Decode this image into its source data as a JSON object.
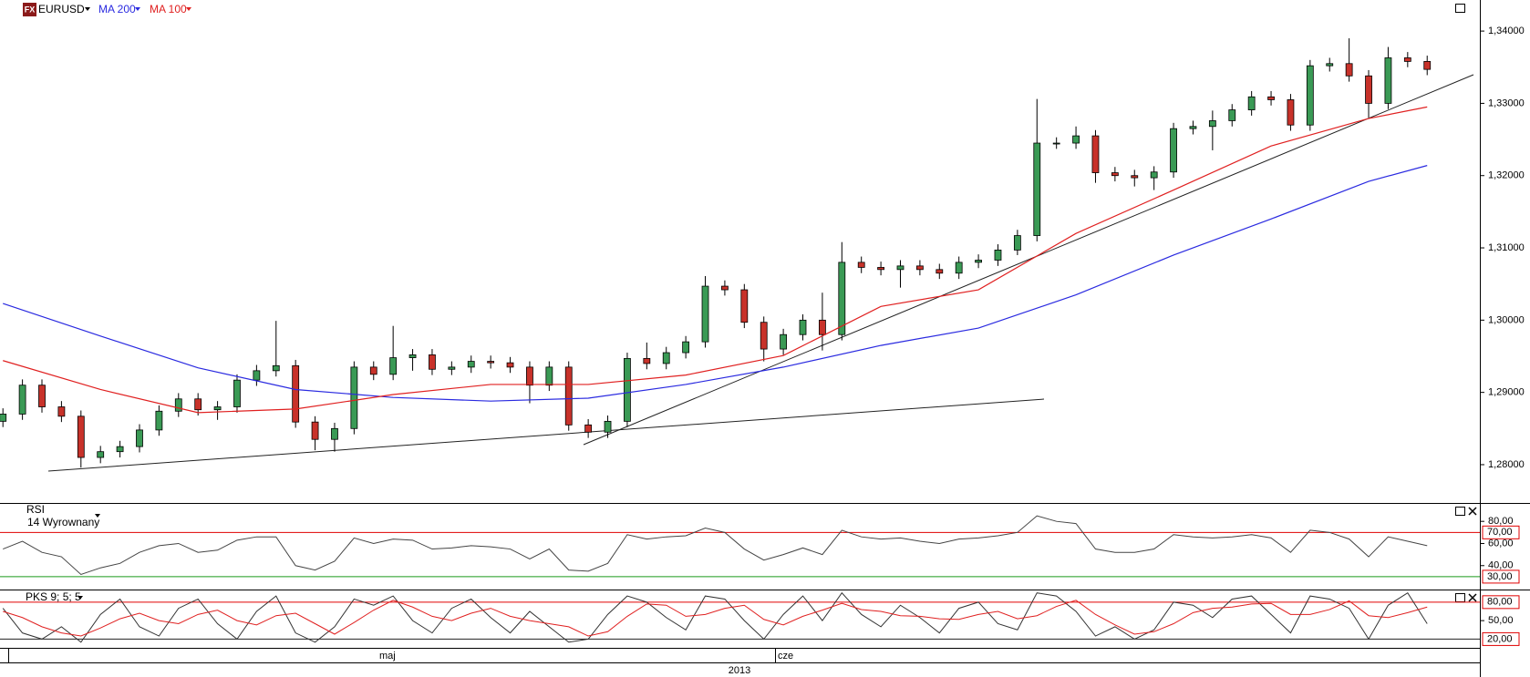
{
  "icon": "FX",
  "chart_data": [
    {
      "type": "candlestick",
      "title": "EURUSD",
      "open": [
        1.286,
        1.287,
        1.291,
        1.288,
        1.2867,
        1.281,
        1.2818,
        1.2825,
        1.2848,
        1.2874,
        1.2891,
        1.2876,
        1.288,
        1.2917,
        1.293,
        1.2937,
        1.2859,
        1.2835,
        1.285,
        1.2935,
        1.2925,
        1.2948,
        1.2952,
        1.2932,
        1.2935,
        1.2943,
        1.2941,
        1.2935,
        1.291,
        1.2935,
        1.2855,
        1.2845,
        1.286,
        1.2947,
        1.294,
        1.2955,
        1.297,
        1.3047,
        1.3042,
        1.2997,
        1.296,
        1.298,
        1.3,
        1.298,
        1.308,
        1.3073,
        1.307,
        1.3075,
        1.307,
        1.3065,
        1.308,
        1.3083,
        1.3097,
        1.3117,
        1.3245,
        1.3245,
        1.3255,
        1.3204,
        1.32,
        1.3197,
        1.3205,
        1.3265,
        1.3268,
        1.3276,
        1.3291,
        1.3309,
        1.3305,
        1.327,
        1.3352,
        1.3355,
        1.3338,
        1.33,
        1.3363,
        1.3358
      ],
      "high": [
        1.2878,
        1.2918,
        1.2918,
        1.2888,
        1.2875,
        1.2826,
        1.2833,
        1.2856,
        1.2882,
        1.2899,
        1.2899,
        1.2888,
        1.2925,
        1.2938,
        1.2999,
        1.2945,
        1.2867,
        1.2858,
        1.2943,
        1.2943,
        1.2992,
        1.296,
        1.296,
        1.2943,
        1.2951,
        1.2951,
        1.2949,
        1.2943,
        1.2943,
        1.2943,
        1.2863,
        1.2868,
        1.2955,
        1.2969,
        1.2963,
        1.2978,
        1.3061,
        1.3055,
        1.305,
        1.3005,
        1.2988,
        1.3008,
        1.3038,
        1.3108,
        1.3088,
        1.3081,
        1.3083,
        1.3083,
        1.3078,
        1.3088,
        1.3091,
        1.3105,
        1.3125,
        1.3306,
        1.3253,
        1.3268,
        1.3263,
        1.3212,
        1.3208,
        1.3213,
        1.3273,
        1.3276,
        1.329,
        1.3299,
        1.3317,
        1.3317,
        1.3313,
        1.336,
        1.3363,
        1.339,
        1.3346,
        1.3378,
        1.3371,
        1.3366
      ],
      "low": [
        1.2852,
        1.2862,
        1.2872,
        1.2859,
        1.2796,
        1.2802,
        1.281,
        1.2817,
        1.284,
        1.2866,
        1.2868,
        1.2862,
        1.2872,
        1.2909,
        1.2922,
        1.2851,
        1.282,
        1.2818,
        1.2842,
        1.2917,
        1.2917,
        1.293,
        1.2924,
        1.2924,
        1.2927,
        1.2933,
        1.2927,
        1.2885,
        1.2902,
        1.2847,
        1.2837,
        1.2837,
        1.2852,
        1.2932,
        1.2932,
        1.2947,
        1.2962,
        1.3034,
        1.2989,
        1.2943,
        1.2952,
        1.2972,
        1.2958,
        1.2972,
        1.3065,
        1.3062,
        1.3045,
        1.3062,
        1.3057,
        1.3057,
        1.3072,
        1.3075,
        1.309,
        1.3109,
        1.3237,
        1.3237,
        1.319,
        1.3192,
        1.3185,
        1.318,
        1.3197,
        1.3257,
        1.3235,
        1.3268,
        1.3283,
        1.3297,
        1.3262,
        1.3262,
        1.3344,
        1.333,
        1.328,
        1.3292,
        1.335,
        1.3339
      ],
      "close": [
        1.287,
        1.291,
        1.288,
        1.2867,
        1.281,
        1.2818,
        1.2825,
        1.2848,
        1.2874,
        1.2891,
        1.2876,
        1.288,
        1.2917,
        1.293,
        1.2937,
        1.2859,
        1.2835,
        1.285,
        1.2935,
        1.2925,
        1.2948,
        1.2952,
        1.2932,
        1.2935,
        1.2943,
        1.2941,
        1.2935,
        1.291,
        1.2935,
        1.2855,
        1.2845,
        1.286,
        1.2947,
        1.294,
        1.2955,
        1.297,
        1.3047,
        1.3042,
        1.2997,
        1.296,
        1.298,
        1.3,
        1.298,
        1.308,
        1.3073,
        1.307,
        1.3075,
        1.307,
        1.3065,
        1.308,
        1.3083,
        1.3097,
        1.3117,
        1.3245,
        1.3245,
        1.3255,
        1.3204,
        1.32,
        1.3197,
        1.3205,
        1.3265,
        1.3268,
        1.3276,
        1.3291,
        1.3309,
        1.3305,
        1.327,
        1.3352,
        1.3355,
        1.3338,
        1.33,
        1.3363,
        1.3358,
        1.3347
      ],
      "up_color": "#3a9a55",
      "down_color": "#c8322a",
      "series": [
        {
          "name": "MA 200",
          "color": "#2a2ae0",
          "x": [
            0,
            5,
            10,
            15,
            20,
            25,
            30,
            35,
            40,
            45,
            50,
            55,
            60,
            65,
            70,
            73
          ],
          "values": [
            1.3023,
            1.2978,
            1.2934,
            1.2904,
            1.2893,
            1.2888,
            1.2892,
            1.2911,
            1.2935,
            1.2965,
            1.2989,
            1.3035,
            1.309,
            1.314,
            1.3192,
            1.3214
          ]
        },
        {
          "name": "MA 100",
          "color": "#e02020",
          "x": [
            0,
            5,
            10,
            15,
            20,
            25,
            30,
            35,
            40,
            45,
            50,
            55,
            60,
            65,
            70,
            73
          ],
          "values": [
            1.2944,
            1.2904,
            1.2872,
            1.2877,
            1.2897,
            1.2911,
            1.2911,
            1.2924,
            1.2951,
            1.3019,
            1.3042,
            1.312,
            1.318,
            1.3241,
            1.3279,
            1.3295
          ]
        }
      ],
      "xlim": [
        -0.15,
        75.7
      ],
      "ylim": [
        1.2747,
        1.3443
      ],
      "yticks": [
        {
          "value": 1.28,
          "label": "1,28000"
        },
        {
          "value": 1.29,
          "label": "1,29000"
        },
        {
          "value": 1.3,
          "label": "1,30000"
        },
        {
          "value": 1.31,
          "label": "1,31000"
        },
        {
          "value": 1.32,
          "label": "1,32000"
        },
        {
          "value": 1.33,
          "label": "1,33000"
        },
        {
          "value": 1.34,
          "label": "1,34000"
        }
      ],
      "period_labels": [
        "maj",
        "cze"
      ],
      "year_label": "2013"
    },
    {
      "type": "line",
      "title": "RSI",
      "subtitle": "14 Wyrownany",
      "color": "#444444",
      "values": [
        55,
        62,
        52,
        48,
        32,
        38,
        42,
        52,
        58,
        60,
        52,
        54,
        63,
        66,
        66,
        40,
        36,
        44,
        65,
        60,
        64,
        63,
        55,
        56,
        58,
        57,
        55,
        46,
        55,
        36,
        35,
        42,
        68,
        64,
        66,
        67,
        74,
        70,
        55,
        45,
        50,
        56,
        50,
        72,
        66,
        64,
        65,
        62,
        60,
        64,
        65,
        67,
        70,
        85,
        80,
        78,
        55,
        52,
        52,
        55,
        68,
        66,
        65,
        66,
        68,
        65,
        52,
        72,
        70,
        64,
        48,
        66,
        62,
        58
      ],
      "xlim": [
        -0.15,
        75.7
      ],
      "ylim": [
        18.4,
        95.8
      ],
      "yticks": [
        {
          "value": 80,
          "label": "80,00"
        },
        {
          "value": 60,
          "label": "60,00"
        },
        {
          "value": 40,
          "label": "40,00"
        }
      ],
      "levels": [
        {
          "value": 70,
          "label": "70,00",
          "color": "#e00000"
        },
        {
          "value": 30,
          "label": "30,00",
          "color": "#1a9a1a"
        }
      ]
    },
    {
      "type": "line",
      "title": "PKS 9; 5; 5",
      "series": [
        {
          "color": "#333333",
          "values": [
            70,
            30,
            20,
            40,
            15,
            60,
            85,
            40,
            25,
            70,
            85,
            45,
            20,
            65,
            90,
            30,
            15,
            40,
            85,
            75,
            90,
            50,
            30,
            70,
            85,
            55,
            30,
            65,
            40,
            15,
            20,
            60,
            90,
            80,
            55,
            35,
            90,
            85,
            50,
            20,
            60,
            90,
            50,
            95,
            60,
            40,
            75,
            55,
            30,
            70,
            80,
            45,
            35,
            95,
            90,
            65,
            25,
            40,
            20,
            35,
            80,
            75,
            55,
            85,
            90,
            60,
            30,
            90,
            85,
            70,
            20,
            75,
            95,
            45
          ]
        },
        {
          "color": "#e02020",
          "values": [
            65,
            55,
            40,
            30,
            25,
            38,
            53,
            62,
            50,
            45,
            60,
            67,
            50,
            43,
            58,
            62,
            45,
            28,
            47,
            67,
            83,
            72,
            57,
            50,
            62,
            70,
            57,
            50,
            45,
            40,
            25,
            32,
            57,
            77,
            75,
            57,
            60,
            70,
            75,
            52,
            43,
            57,
            67,
            78,
            68,
            65,
            58,
            57,
            53,
            52,
            60,
            65,
            53,
            58,
            73,
            83,
            60,
            43,
            28,
            32,
            45,
            63,
            70,
            72,
            77,
            78,
            60,
            60,
            68,
            82,
            58,
            55,
            63,
            72
          ]
        }
      ],
      "xlim": [
        -0.15,
        75.7
      ],
      "ylim": [
        5.8,
        99
      ],
      "yticks": [
        {
          "value": 50,
          "label": "50,00"
        }
      ],
      "levels": [
        {
          "value": 80,
          "label": "80,00",
          "color": "#e00000"
        },
        {
          "value": 20,
          "label": "20,00",
          "color": "#222222"
        }
      ]
    }
  ]
}
